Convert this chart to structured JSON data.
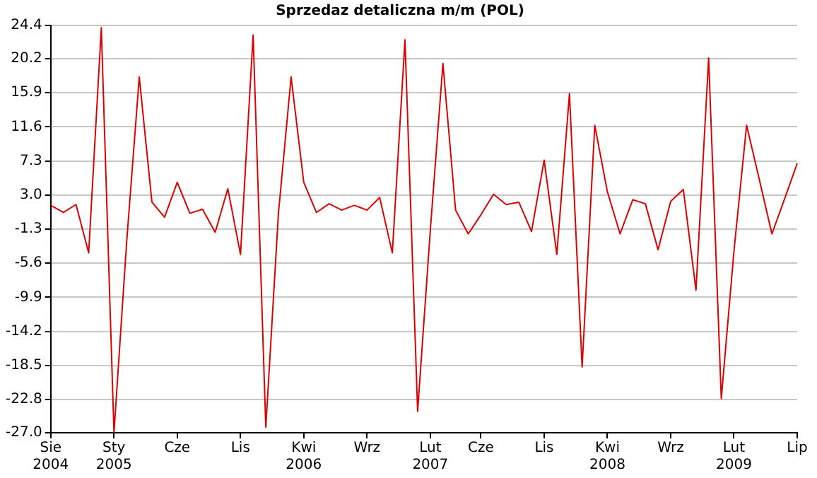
{
  "chart_data": {
    "type": "line",
    "title": "Sprzedaz detaliczna m/m (POL)",
    "categories": [
      "Sie 2004",
      null,
      null,
      null,
      null,
      "Sty 2005",
      null,
      null,
      null,
      null,
      "Cze",
      null,
      null,
      null,
      null,
      "Lis",
      null,
      null,
      null,
      null,
      "Kwi 2006",
      null,
      null,
      null,
      null,
      "Wrz",
      null,
      null,
      null,
      null,
      "Lut 2007",
      null,
      null,
      null,
      "Cze",
      null,
      null,
      null,
      null,
      "Lis",
      null,
      null,
      null,
      null,
      "Kwi 2008",
      null,
      null,
      null,
      null,
      "Wrz",
      null,
      null,
      null,
      null,
      "Lut 2009",
      null,
      null,
      null,
      null,
      "Lip"
    ],
    "series": [
      {
        "color": "#e00000",
        "values": [
          1.7,
          0.8,
          1.8,
          -4.3,
          24.1,
          -27.0,
          -3.0,
          17.9,
          2.1,
          0.2,
          4.6,
          0.7,
          1.2,
          -1.7,
          3.8,
          -4.5,
          23.2,
          -26.3,
          0.7,
          17.9,
          4.6,
          0.8,
          1.9,
          1.1,
          1.7,
          1.1,
          2.7,
          -4.3,
          22.6,
          -24.3,
          -1.5,
          19.6,
          1.1,
          -1.9,
          0.5,
          3.1,
          1.8,
          2.1,
          -1.6,
          7.4,
          -4.5,
          15.8,
          -18.7,
          11.8,
          3.4,
          -1.9,
          2.4,
          1.9,
          -3.9,
          2.2,
          3.7,
          -9.0,
          20.3,
          -22.7,
          -4.1,
          11.8,
          5.0,
          -1.9,
          2.5,
          7.0
        ]
      }
    ],
    "ylim": [
      -27.0,
      24.4
    ],
    "yticks": [
      24.4,
      20.2,
      15.9,
      11.6,
      7.3,
      {
        "value": 3,
        "label": "3.0"
      },
      -1.3,
      -5.6,
      -9.9,
      -14.2,
      -18.5,
      -22.8,
      {
        "value": -27,
        "label": "-27.0"
      }
    ],
    "grid": "y",
    "legend": false,
    "marker": "none",
    "line_style": "solid"
  }
}
